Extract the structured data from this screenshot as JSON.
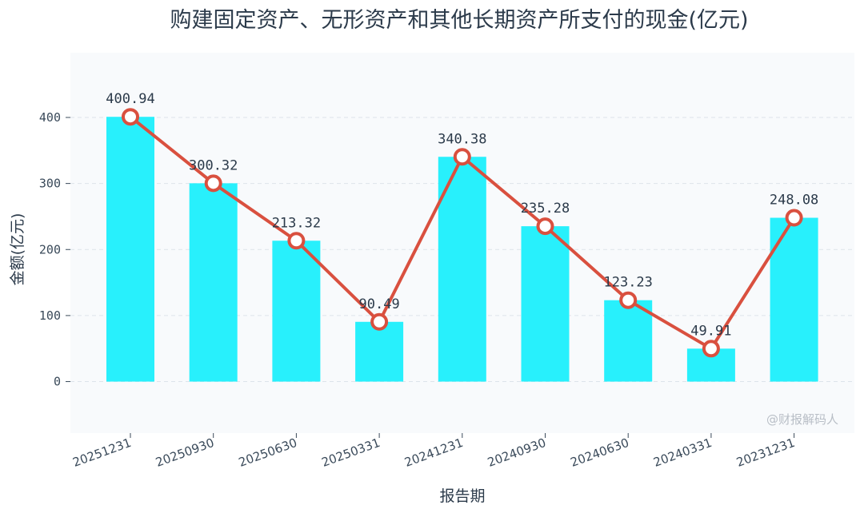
{
  "chart_data": {
    "type": "bar",
    "title": "购建固定资产、无形资产和其他长期资产所支付的现金(亿元)",
    "xlabel": "报告期",
    "ylabel": "金额(亿元)",
    "categories": [
      "20251231",
      "20250930",
      "20250630",
      "20250331",
      "20241231",
      "20240930",
      "20240630",
      "20240331",
      "20231231"
    ],
    "series": [
      {
        "name": "金额(bar)",
        "kind": "bar",
        "values": [
          400.94,
          300.32,
          213.32,
          90.49,
          340.38,
          235.28,
          123.23,
          49.91,
          248.08
        ]
      },
      {
        "name": "金额(line)",
        "kind": "line",
        "values": [
          400.94,
          300.32,
          213.32,
          90.49,
          340.38,
          235.28,
          123.23,
          49.91,
          248.08
        ]
      }
    ],
    "data_labels": [
      "400.94",
      "300.32",
      "213.32",
      "90.49",
      "340.38",
      "235.28",
      "123.23",
      "49.91",
      "248.08"
    ],
    "yticks": [
      0,
      100,
      200,
      300,
      400
    ],
    "ylim": [
      -78,
      498
    ],
    "grid": true,
    "watermark": "@财报解码人",
    "colors": {
      "bar": "#28f0fc",
      "line": "#d9503f",
      "marker_fill": "#ffffff",
      "plot_bg": "#f8fafc",
      "grid": "#dde3ea"
    }
  }
}
